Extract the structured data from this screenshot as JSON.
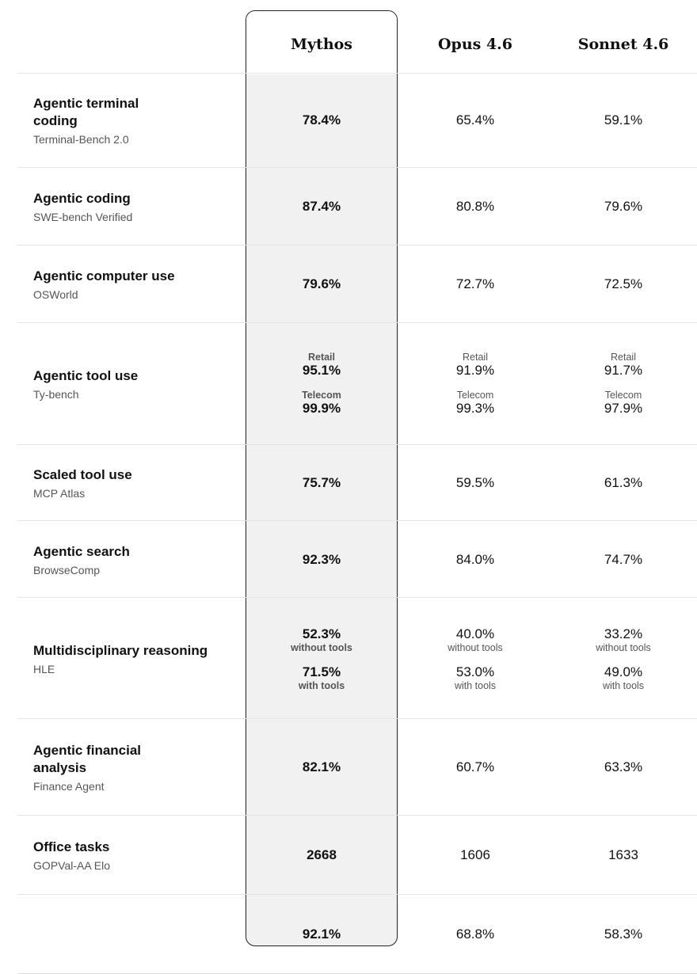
{
  "columns": [
    "Mythos",
    "Opus 4.6",
    "Sonnet 4.6"
  ],
  "rows": [
    {
      "title": "Agentic terminal coding",
      "subtitle": "Terminal-Bench 2.0",
      "values": [
        [
          {
            "v": "78.4%"
          }
        ],
        [
          {
            "v": "65.4%"
          }
        ],
        [
          {
            "v": "59.1%"
          }
        ]
      ]
    },
    {
      "title": "Agentic coding",
      "subtitle": "SWE-bench Verified",
      "values": [
        [
          {
            "v": "87.4%"
          }
        ],
        [
          {
            "v": "80.8%"
          }
        ],
        [
          {
            "v": "79.6%"
          }
        ]
      ]
    },
    {
      "title": "Agentic computer use",
      "subtitle": "OSWorld",
      "values": [
        [
          {
            "v": "79.6%"
          }
        ],
        [
          {
            "v": "72.7%"
          }
        ],
        [
          {
            "v": "72.5%"
          }
        ]
      ]
    },
    {
      "title": "Agentic tool use",
      "subtitle": "Ty-bench",
      "values": [
        [
          {
            "pre": "Retail",
            "v": "95.1%"
          },
          {
            "pre": "Telecom",
            "v": "99.9%"
          }
        ],
        [
          {
            "pre": "Retail",
            "v": "91.9%"
          },
          {
            "pre": "Telecom",
            "v": "99.3%"
          }
        ],
        [
          {
            "pre": "Retail",
            "v": "91.7%"
          },
          {
            "pre": "Telecom",
            "v": "97.9%"
          }
        ]
      ]
    },
    {
      "title": "Scaled tool use",
      "subtitle": "MCP Atlas",
      "values": [
        [
          {
            "v": "75.7%"
          }
        ],
        [
          {
            "v": "59.5%"
          }
        ],
        [
          {
            "v": "61.3%"
          }
        ]
      ]
    },
    {
      "title": "Agentic search",
      "subtitle": "BrowseComp",
      "values": [
        [
          {
            "v": "92.3%"
          }
        ],
        [
          {
            "v": "84.0%"
          }
        ],
        [
          {
            "v": "74.7%"
          }
        ]
      ]
    },
    {
      "title": "Multidisciplinary reasoning",
      "subtitle": "HLE",
      "values": [
        [
          {
            "v": "52.3%",
            "post": "without tools"
          },
          {
            "v": "71.5%",
            "post": "with tools"
          }
        ],
        [
          {
            "v": "40.0%",
            "post": "without tools"
          },
          {
            "v": "53.0%",
            "post": "with tools"
          }
        ],
        [
          {
            "v": "33.2%",
            "post": "without tools"
          },
          {
            "v": "49.0%",
            "post": "with tools"
          }
        ]
      ]
    },
    {
      "title": "Agentic financial analysis",
      "subtitle": "Finance Agent",
      "values": [
        [
          {
            "v": "82.1%"
          }
        ],
        [
          {
            "v": "60.7%"
          }
        ],
        [
          {
            "v": "63.3%"
          }
        ]
      ]
    },
    {
      "title": "Office tasks",
      "subtitle": "GOPVal-AA Elo",
      "values": [
        [
          {
            "v": "2668"
          }
        ],
        [
          {
            "v": "1606"
          }
        ],
        [
          {
            "v": "1633"
          }
        ]
      ]
    },
    {
      "title": "",
      "subtitle": "",
      "values": [
        [
          {
            "v": "92.1%"
          }
        ],
        [
          {
            "v": "68.8%"
          }
        ],
        [
          {
            "v": "58.3%"
          }
        ]
      ]
    }
  ]
}
